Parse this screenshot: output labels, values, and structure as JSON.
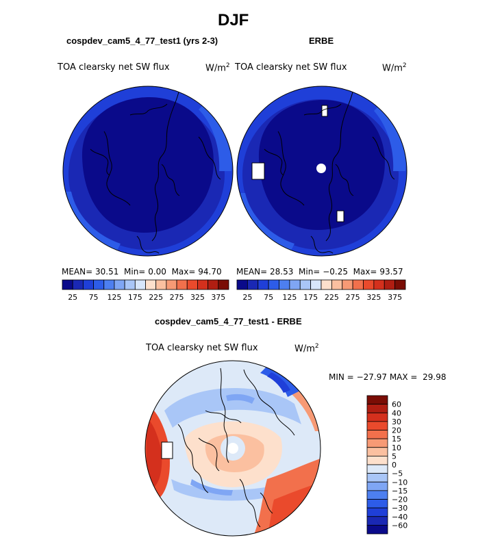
{
  "page": {
    "title": "DJF"
  },
  "chart_data": [
    {
      "type": "heatmap",
      "projection": "polar-stereographic",
      "title": "cospdev_cam5_4_77_test1 (yrs 2-3)",
      "subtitle": "TOA clearsky net SW flux",
      "units": {
        "text": "W/m",
        "sup": "2"
      },
      "stats": {
        "mean_label": "MEAN=",
        "mean": "30.51",
        "min_label": "Min=",
        "min": "0.00",
        "max_label": "Max=",
        "max": "94.70"
      },
      "colorbar": {
        "colors": [
          "#0a0a8a",
          "#1a28b4",
          "#1f3fd8",
          "#2d5ce8",
          "#4d7ff0",
          "#7fa6f4",
          "#a9c6f7",
          "#d7e6fb",
          "#fde0cc",
          "#fbc0a0",
          "#f79a75",
          "#f2704c",
          "#ea4a2c",
          "#d4301d",
          "#b01e12",
          "#7a0d05"
        ],
        "labels": [
          "25",
          "75",
          "125",
          "175",
          "225",
          "275",
          "325",
          "375"
        ]
      }
    },
    {
      "type": "heatmap",
      "projection": "polar-stereographic",
      "title": "ERBE",
      "subtitle": "TOA clearsky net SW flux",
      "units": {
        "text": "W/m",
        "sup": "2"
      },
      "stats": {
        "mean_label": "MEAN=",
        "mean": "28.53",
        "min_label": "Min=",
        "min": "−0.25",
        "max_label": "Max=",
        "max": "93.57"
      },
      "colorbar": {
        "colors": [
          "#0a0a8a",
          "#1a28b4",
          "#1f3fd8",
          "#2d5ce8",
          "#4d7ff0",
          "#7fa6f4",
          "#a9c6f7",
          "#d7e6fb",
          "#fde0cc",
          "#fbc0a0",
          "#f79a75",
          "#f2704c",
          "#ea4a2c",
          "#d4301d",
          "#b01e12",
          "#7a0d05"
        ],
        "labels": [
          "25",
          "75",
          "125",
          "175",
          "225",
          "275",
          "325",
          "375"
        ]
      }
    },
    {
      "type": "heatmap",
      "projection": "polar-stereographic",
      "title": "cospdev_cam5_4_77_test1 - ERBE",
      "subtitle": "TOA clearsky net SW flux",
      "units": {
        "text": "W/m",
        "sup": "2"
      },
      "stats": {
        "min_label": "MIN =",
        "min": "−27.97",
        "max_label": "MAX =",
        "max": "29.98"
      },
      "colorbar": {
        "colors": [
          "#7a0d05",
          "#b01e12",
          "#d4301d",
          "#ea4a2c",
          "#f2704c",
          "#f79a75",
          "#fbc0a0",
          "#fde0cc",
          "#dde9f8",
          "#a9c6f7",
          "#7fa6f4",
          "#4d7ff0",
          "#2d5ce8",
          "#1f3fd8",
          "#1a28b4",
          "#0a0a8a"
        ],
        "labels": [
          "60",
          "40",
          "30",
          "20",
          "15",
          "10",
          "5",
          "0",
          "−5",
          "−10",
          "−15",
          "−20",
          "−30",
          "−40",
          "−60"
        ]
      }
    }
  ]
}
